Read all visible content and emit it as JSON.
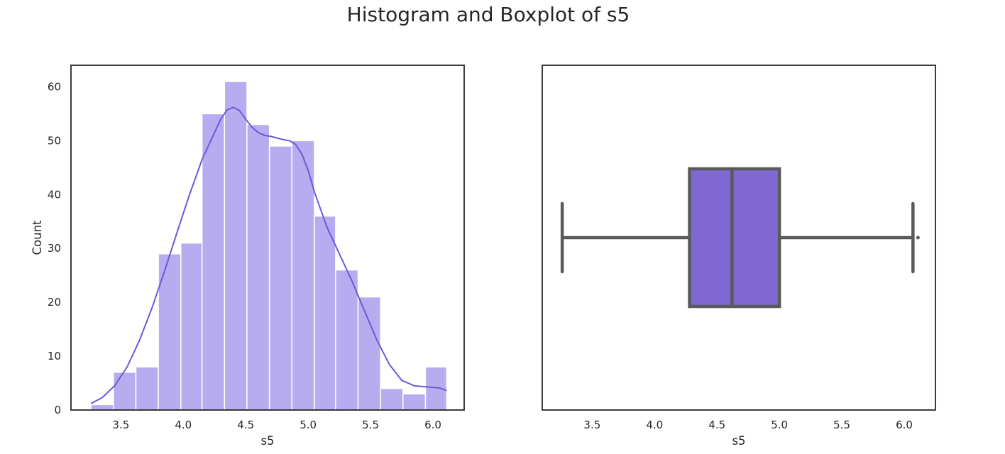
{
  "figure_title": "Histogram and Boxplot of s5",
  "colors": {
    "bar_fill": "#b7acef",
    "bar_edge": "#ffffff",
    "kde_line": "#7255d9",
    "box_fill": "#8068d2",
    "box_line": "#5a5a5a",
    "axes": "#262626"
  },
  "chart_data": [
    {
      "type": "histogram",
      "xlabel": "s5",
      "ylabel": "Count",
      "xlim": [
        3.1,
        6.25
      ],
      "ylim": [
        0,
        64
      ],
      "xticks": [
        "3.5",
        "4.0",
        "4.5",
        "5.0",
        "5.5",
        "6.0"
      ],
      "yticks": [
        "0",
        "10",
        "20",
        "30",
        "40",
        "50",
        "60"
      ],
      "grid": false,
      "bins": [
        {
          "x0": 3.26,
          "x1": 3.44,
          "count": 1
        },
        {
          "x0": 3.44,
          "x1": 3.62,
          "count": 7
        },
        {
          "x0": 3.62,
          "x1": 3.8,
          "count": 8
        },
        {
          "x0": 3.8,
          "x1": 3.98,
          "count": 29
        },
        {
          "x0": 3.98,
          "x1": 4.15,
          "count": 31
        },
        {
          "x0": 4.15,
          "x1": 4.33,
          "count": 55
        },
        {
          "x0": 4.33,
          "x1": 4.51,
          "count": 61
        },
        {
          "x0": 4.51,
          "x1": 4.69,
          "count": 53
        },
        {
          "x0": 4.69,
          "x1": 4.87,
          "count": 49
        },
        {
          "x0": 4.87,
          "x1": 5.05,
          "count": 50
        },
        {
          "x0": 5.05,
          "x1": 5.22,
          "count": 36
        },
        {
          "x0": 5.22,
          "x1": 5.4,
          "count": 26
        },
        {
          "x0": 5.4,
          "x1": 5.58,
          "count": 21
        },
        {
          "x0": 5.58,
          "x1": 5.76,
          "count": 4
        },
        {
          "x0": 5.76,
          "x1": 5.94,
          "count": 3
        },
        {
          "x0": 5.94,
          "x1": 6.11,
          "count": 8
        }
      ],
      "kde": {
        "x": [
          3.26,
          3.35,
          3.45,
          3.55,
          3.65,
          3.75,
          3.85,
          3.95,
          4.05,
          4.15,
          4.25,
          4.3,
          4.35,
          4.4,
          4.45,
          4.5,
          4.55,
          4.6,
          4.65,
          4.7,
          4.75,
          4.8,
          4.85,
          4.9,
          4.95,
          5.0,
          5.05,
          5.15,
          5.25,
          5.35,
          5.45,
          5.55,
          5.65,
          5.75,
          5.85,
          5.95,
          6.05,
          6.11
        ],
        "y": [
          1.2,
          2.3,
          4.5,
          8.0,
          13.0,
          19.0,
          25.8,
          33.0,
          40.0,
          46.5,
          51.5,
          54.0,
          55.7,
          56.2,
          55.6,
          54.0,
          52.5,
          51.5,
          51.0,
          50.8,
          50.5,
          50.2,
          50.0,
          49.3,
          47.5,
          44.5,
          40.5,
          34.0,
          29.0,
          24.0,
          18.5,
          13.0,
          8.5,
          5.5,
          4.5,
          4.3,
          4.1,
          3.6
        ]
      }
    },
    {
      "type": "boxplot",
      "xlabel": "s5",
      "xlim": [
        3.1,
        6.25
      ],
      "xticks": [
        "3.5",
        "4.0",
        "4.5",
        "5.0",
        "5.5",
        "6.0"
      ],
      "grid": false,
      "whisker_low": 3.26,
      "q1": 4.28,
      "median": 4.62,
      "q3": 5.0,
      "whisker_high": 6.07,
      "outliers": [
        6.11
      ]
    }
  ]
}
